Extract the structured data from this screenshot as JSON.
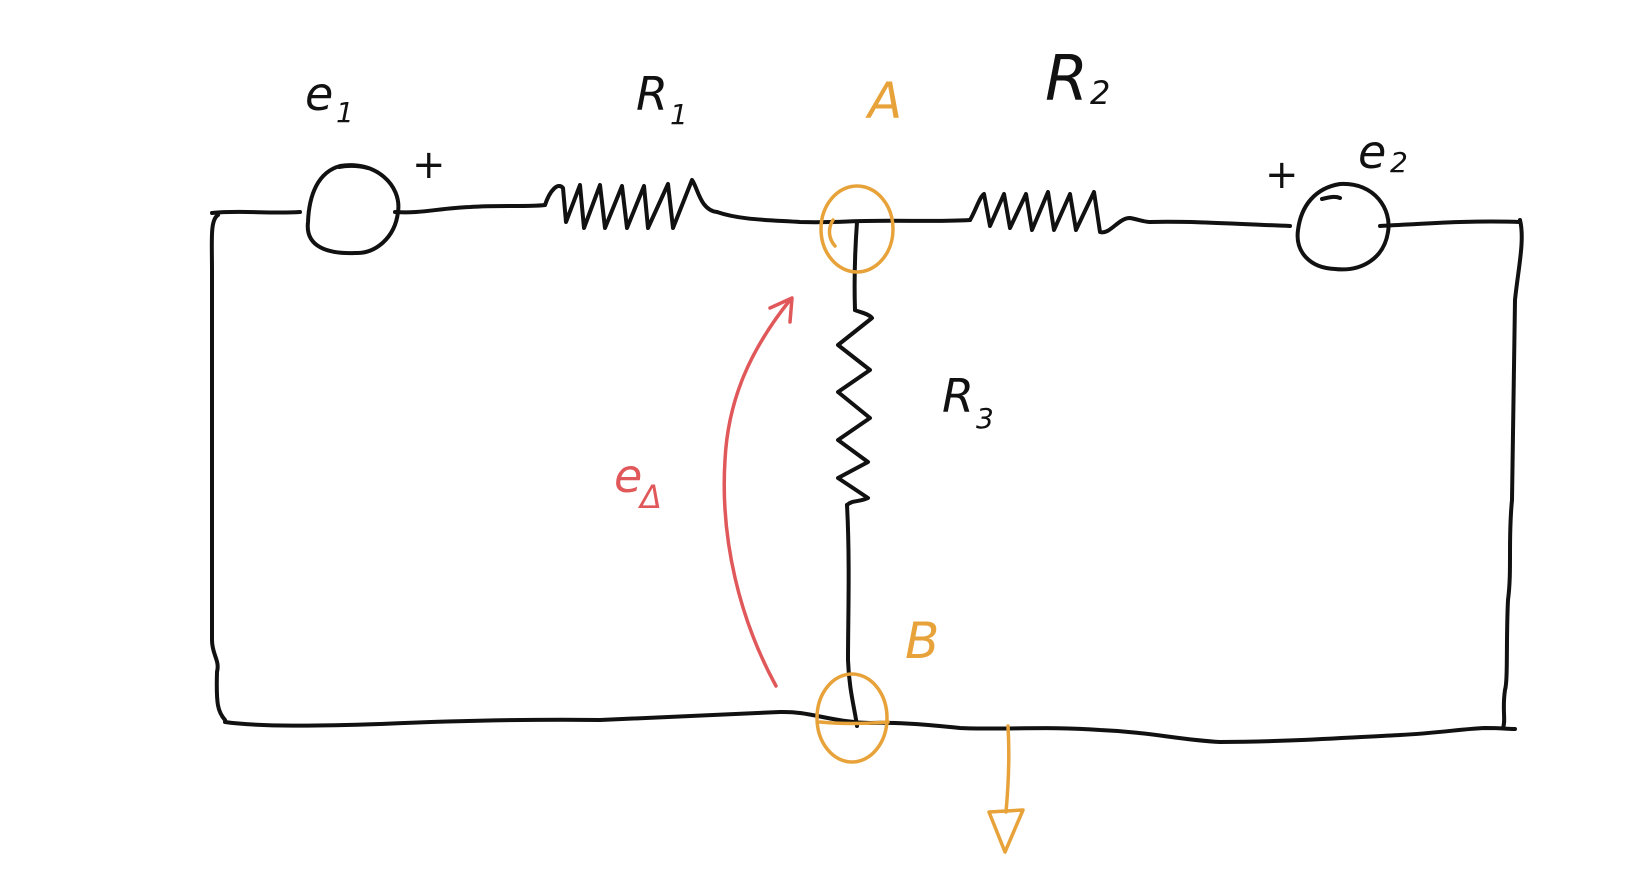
{
  "colors": {
    "circuit": "#111111",
    "node": "#e8a23a",
    "voltage": "#e0585a"
  },
  "labels": {
    "e1": "e",
    "e1_sub": "1",
    "e2": "e",
    "e2_sub": "2",
    "r1": "R",
    "r1_sub": "1",
    "r2": "R",
    "r2_sub": "2",
    "r3": "R",
    "r3_sub": "3",
    "node_a": "A",
    "node_b": "B",
    "e_delta": "e",
    "e_delta_sub": "Δ",
    "plus": "+"
  },
  "icons": {
    "source": "voltage-source-icon",
    "resistor": "resistor-icon",
    "ground": "ground-icon",
    "node": "node-ring-icon",
    "arrow": "voltage-arrow-icon"
  }
}
